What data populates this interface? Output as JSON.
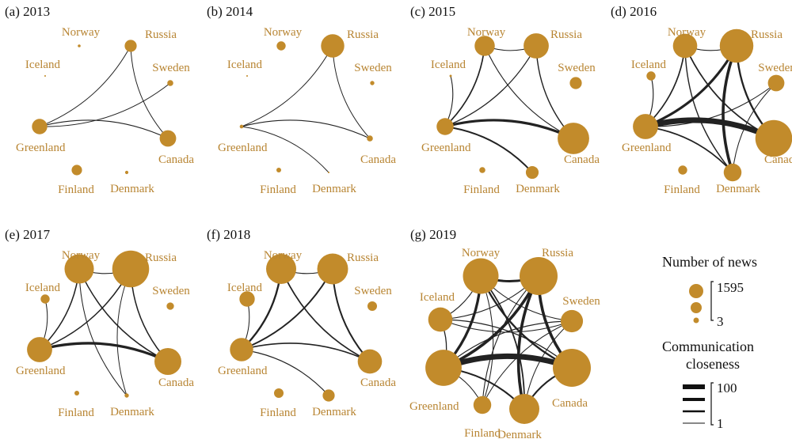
{
  "colors": {
    "node": "#c28b2b",
    "label": "#b88533",
    "edge": "#222222",
    "text": "#111111"
  },
  "panels": [
    {
      "id": "a",
      "title": "(a) 2013",
      "nodes": [
        {
          "name": "Norway",
          "label": "Norway",
          "news": 9
        },
        {
          "name": "Russia",
          "label": "Russia",
          "news": 160
        },
        {
          "name": "Iceland",
          "label": "Iceland",
          "news": 3
        },
        {
          "name": "Sweden",
          "label": "Sweden",
          "news": 40
        },
        {
          "name": "Greenland",
          "label": "Greenland",
          "news": 260
        },
        {
          "name": "Canada",
          "label": "Canada",
          "news": 300
        },
        {
          "name": "Finland",
          "label": "Finland",
          "news": 120
        },
        {
          "name": "Denmark",
          "label": "Denmark",
          "news": 12
        }
      ],
      "edges": [
        {
          "source": "Greenland",
          "target": "Canada",
          "closeness": 6
        },
        {
          "source": "Greenland",
          "target": "Sweden",
          "closeness": 3
        },
        {
          "source": "Greenland",
          "target": "Russia",
          "closeness": 3
        },
        {
          "source": "Russia",
          "target": "Canada",
          "closeness": 3
        }
      ]
    },
    {
      "id": "b",
      "title": "(b) 2014",
      "nodes": [
        {
          "name": "Norway",
          "label": "Norway",
          "news": 90
        },
        {
          "name": "Russia",
          "label": "Russia",
          "news": 600
        },
        {
          "name": "Iceland",
          "label": "Iceland",
          "news": 3
        },
        {
          "name": "Sweden",
          "label": "Sweden",
          "news": 20
        },
        {
          "name": "Greenland",
          "label": "Greenland",
          "news": 15
        },
        {
          "name": "Canada",
          "label": "Canada",
          "news": 40
        },
        {
          "name": "Finland",
          "label": "Finland",
          "news": 25
        },
        {
          "name": "Denmark",
          "label": "Denmark",
          "news": 3
        }
      ],
      "edges": [
        {
          "source": "Greenland",
          "target": "Canada",
          "closeness": 5
        },
        {
          "source": "Greenland",
          "target": "Russia",
          "closeness": 3
        },
        {
          "source": "Russia",
          "target": "Canada",
          "closeness": 3
        },
        {
          "source": "Greenland",
          "target": "Denmark",
          "closeness": 3
        }
      ]
    },
    {
      "id": "c",
      "title": "(c) 2015",
      "nodes": [
        {
          "name": "Norway",
          "label": "Norway",
          "news": 450
        },
        {
          "name": "Russia",
          "label": "Russia",
          "news": 700
        },
        {
          "name": "Iceland",
          "label": "Iceland",
          "news": 6
        },
        {
          "name": "Sweden",
          "label": "Sweden",
          "news": 160
        },
        {
          "name": "Greenland",
          "label": "Greenland",
          "news": 320
        },
        {
          "name": "Canada",
          "label": "Canada",
          "news": 1100
        },
        {
          "name": "Finland",
          "label": "Finland",
          "news": 40
        },
        {
          "name": "Denmark",
          "label": "Denmark",
          "news": 180
        }
      ],
      "edges": [
        {
          "source": "Greenland",
          "target": "Canada",
          "closeness": 38
        },
        {
          "source": "Greenland",
          "target": "Norway",
          "closeness": 14
        },
        {
          "source": "Greenland",
          "target": "Russia",
          "closeness": 8
        },
        {
          "source": "Norway",
          "target": "Canada",
          "closeness": 5
        },
        {
          "source": "Russia",
          "target": "Canada",
          "closeness": 10
        },
        {
          "source": "Norway",
          "target": "Russia",
          "closeness": 4
        },
        {
          "source": "Greenland",
          "target": "Denmark",
          "closeness": 18
        },
        {
          "source": "Iceland",
          "target": "Greenland",
          "closeness": 5
        }
      ]
    },
    {
      "id": "d",
      "title": "(d) 2016",
      "nodes": [
        {
          "name": "Norway",
          "label": "Norway",
          "news": 650
        },
        {
          "name": "Russia",
          "label": "Russia",
          "news": 1250
        },
        {
          "name": "Iceland",
          "label": "Iceland",
          "news": 90
        },
        {
          "name": "Sweden",
          "label": "Sweden",
          "news": 300
        },
        {
          "name": "Greenland",
          "label": "Greenland",
          "news": 700
        },
        {
          "name": "Canada",
          "label": "Canada",
          "news": 1500
        },
        {
          "name": "Finland",
          "label": "Finland",
          "news": 90
        },
        {
          "name": "Denmark",
          "label": "Denmark",
          "news": 350
        }
      ],
      "edges": [
        {
          "source": "Greenland",
          "target": "Canada",
          "closeness": 100
        },
        {
          "source": "Greenland",
          "target": "Russia",
          "closeness": 38
        },
        {
          "source": "Greenland",
          "target": "Norway",
          "closeness": 14
        },
        {
          "source": "Norway",
          "target": "Canada",
          "closeness": 15
        },
        {
          "source": "Russia",
          "target": "Canada",
          "closeness": 25
        },
        {
          "source": "Norway",
          "target": "Russia",
          "closeness": 6
        },
        {
          "source": "Russia",
          "target": "Denmark",
          "closeness": 45
        },
        {
          "source": "Norway",
          "target": "Denmark",
          "closeness": 10
        },
        {
          "source": "Greenland",
          "target": "Sweden",
          "closeness": 5
        },
        {
          "source": "Greenland",
          "target": "Denmark",
          "closeness": 15
        },
        {
          "source": "Iceland",
          "target": "Greenland",
          "closeness": 6
        },
        {
          "source": "Sweden",
          "target": "Denmark",
          "closeness": 4
        }
      ]
    },
    {
      "id": "e",
      "title": "(e) 2017",
      "nodes": [
        {
          "name": "Norway",
          "label": "Norway",
          "news": 950
        },
        {
          "name": "Russia",
          "label": "Russia",
          "news": 1500
        },
        {
          "name": "Iceland",
          "label": "Iceland",
          "news": 90
        },
        {
          "name": "Sweden",
          "label": "Sweden",
          "news": 60
        },
        {
          "name": "Greenland",
          "label": "Greenland",
          "news": 700
        },
        {
          "name": "Canada",
          "label": "Canada",
          "news": 800
        },
        {
          "name": "Finland",
          "label": "Finland",
          "news": 25
        },
        {
          "name": "Denmark",
          "label": "Denmark",
          "news": 20
        }
      ],
      "edges": [
        {
          "source": "Greenland",
          "target": "Canada",
          "closeness": 40
        },
        {
          "source": "Greenland",
          "target": "Norway",
          "closeness": 12
        },
        {
          "source": "Greenland",
          "target": "Russia",
          "closeness": 12
        },
        {
          "source": "Norway",
          "target": "Canada",
          "closeness": 12
        },
        {
          "source": "Russia",
          "target": "Canada",
          "closeness": 12
        },
        {
          "source": "Norway",
          "target": "Russia",
          "closeness": 5
        },
        {
          "source": "Norway",
          "target": "Denmark",
          "closeness": 4
        },
        {
          "source": "Russia",
          "target": "Denmark",
          "closeness": 3
        },
        {
          "source": "Iceland",
          "target": "Greenland",
          "closeness": 4
        }
      ]
    },
    {
      "id": "f",
      "title": "(f) 2018",
      "nodes": [
        {
          "name": "Norway",
          "label": "Norway",
          "news": 1000
        },
        {
          "name": "Russia",
          "label": "Russia",
          "news": 1050
        },
        {
          "name": "Iceland",
          "label": "Iceland",
          "news": 260
        },
        {
          "name": "Sweden",
          "label": "Sweden",
          "news": 100
        },
        {
          "name": "Greenland",
          "label": "Greenland",
          "news": 600
        },
        {
          "name": "Canada",
          "label": "Canada",
          "news": 650
        },
        {
          "name": "Finland",
          "label": "Finland",
          "news": 100
        },
        {
          "name": "Denmark",
          "label": "Denmark",
          "news": 160
        }
      ],
      "edges": [
        {
          "source": "Greenland",
          "target": "Canada",
          "closeness": 14
        },
        {
          "source": "Greenland",
          "target": "Norway",
          "closeness": 25
        },
        {
          "source": "Greenland",
          "target": "Russia",
          "closeness": 18
        },
        {
          "source": "Norway",
          "target": "Canada",
          "closeness": 15
        },
        {
          "source": "Russia",
          "target": "Canada",
          "closeness": 20
        },
        {
          "source": "Norway",
          "target": "Russia",
          "closeness": 6
        },
        {
          "source": "Greenland",
          "target": "Denmark",
          "closeness": 6
        },
        {
          "source": "Iceland",
          "target": "Greenland",
          "closeness": 4
        }
      ]
    },
    {
      "id": "g",
      "title": "(g) 2019",
      "nodes": [
        {
          "name": "Norway",
          "label": "Norway",
          "news": 1400
        },
        {
          "name": "Russia",
          "label": "Russia",
          "news": 1595
        },
        {
          "name": "Iceland",
          "label": "Iceland",
          "news": 650
        },
        {
          "name": "Sweden",
          "label": "Sweden",
          "news": 550
        },
        {
          "name": "Greenland",
          "label": "Greenland",
          "news": 1450
        },
        {
          "name": "Canada",
          "label": "Canada",
          "news": 1595
        },
        {
          "name": "Finland",
          "label": "Finland",
          "news": 350
        },
        {
          "name": "Denmark",
          "label": "Denmark",
          "news": 1000
        }
      ],
      "edges": [
        {
          "source": "Greenland",
          "target": "Canada",
          "closeness": 100
        },
        {
          "source": "Greenland",
          "target": "Norway",
          "closeness": 40
        },
        {
          "source": "Greenland",
          "target": "Russia",
          "closeness": 45
        },
        {
          "source": "Norway",
          "target": "Canada",
          "closeness": 25
        },
        {
          "source": "Russia",
          "target": "Canada",
          "closeness": 45
        },
        {
          "source": "Norway",
          "target": "Russia",
          "closeness": 35
        },
        {
          "source": "Russia",
          "target": "Denmark",
          "closeness": 45
        },
        {
          "source": "Norway",
          "target": "Denmark",
          "closeness": 15
        },
        {
          "source": "Greenland",
          "target": "Denmark",
          "closeness": 20
        },
        {
          "source": "Denmark",
          "target": "Canada",
          "closeness": 20
        },
        {
          "source": "Iceland",
          "target": "Canada",
          "closeness": 8
        },
        {
          "source": "Iceland",
          "target": "Russia",
          "closeness": 6
        },
        {
          "source": "Iceland",
          "target": "Sweden",
          "closeness": 4
        },
        {
          "source": "Sweden",
          "target": "Greenland",
          "closeness": 6
        },
        {
          "source": "Sweden",
          "target": "Norway",
          "closeness": 4
        },
        {
          "source": "Sweden",
          "target": "Denmark",
          "closeness": 4
        },
        {
          "source": "Iceland",
          "target": "Greenland",
          "closeness": 8
        },
        {
          "source": "Iceland",
          "target": "Norway",
          "closeness": 6
        },
        {
          "source": "Finland",
          "target": "Russia",
          "closeness": 5
        },
        {
          "source": "Finland",
          "target": "Norway",
          "closeness": 4
        },
        {
          "source": "Finland",
          "target": "Sweden",
          "closeness": 3
        },
        {
          "source": "Finland",
          "target": "Greenland",
          "closeness": 3
        }
      ]
    }
  ],
  "legend": {
    "news_title": "Number of news",
    "news_max": "1595",
    "news_min": "3",
    "closeness_title_1": "Communication",
    "closeness_title_2": "closeness",
    "closeness_max": "100",
    "closeness_min": "1"
  }
}
